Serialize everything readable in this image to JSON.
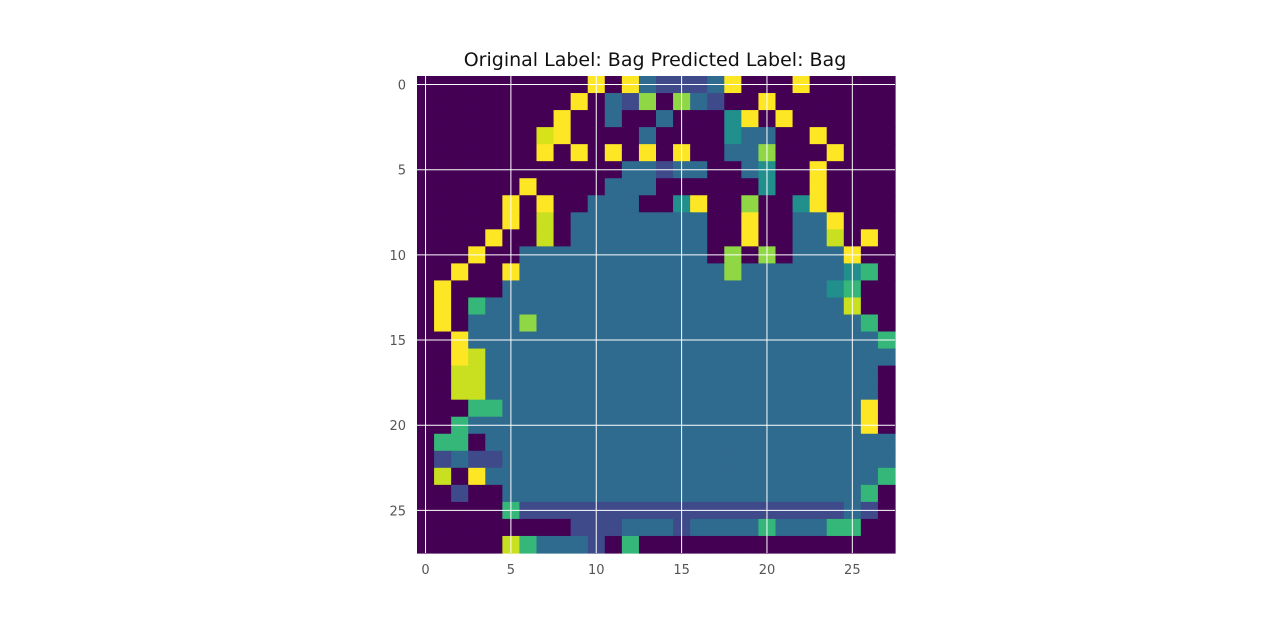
{
  "chart_data": {
    "type": "heatmap",
    "title": "Original Label: Bag  Predicted Label: Bag",
    "xlabel": "",
    "ylabel": "",
    "xlim": [
      -0.5,
      27.5
    ],
    "ylim": [
      27.5,
      -0.5
    ],
    "x_ticks": [
      0,
      5,
      10,
      15,
      20,
      25
    ],
    "y_ticks": [
      0,
      5,
      10,
      15,
      20,
      25
    ],
    "x_tick_labels": [
      "0",
      "5",
      "10",
      "15",
      "20",
      "25"
    ],
    "y_tick_labels": [
      "0",
      "5",
      "10",
      "15",
      "20",
      "25"
    ],
    "grid": true,
    "colormap": "viridis",
    "value_range": [
      0,
      1
    ],
    "colors": {
      "grid": "#ffffff",
      "tick_label": "#555555",
      "title": "#111111"
    },
    "matrix": [
      "0000000000Y0Y21112Y000Y00000",
      "000000000Y021L0L2100Y0000000",
      "00000000Y0020020003Y0Y000000",
      "00000007Y00002000032200Y0000",
      "0000000Y0Y0Y0Y0Y0022L000Y000",
      "00000000000022122002300Y0000",
      "000000Y0000222000000300Y0000",
      "00000Y0Y00222003Y00L003Y0000",
      "00000Y0J02222222200Y0022Y000",
      "0000Y00J02222222200Y0022J0Y0",
      "000Y00222222222220L0L0222Y00",
      "00Y00Y222222222222L2222223G0",
      "0Y00022222222222222222223G00",
      "0Y0G222222222222222222222J00",
      "0Y0222L2222222222222222222G0",
      "00Y222222222222222222222222G",
      "00YJ222222222222222222222222",
      "00JJ222222222222222222222220",
      "00JJ222222222222222222222220",
      "000GG222222222222222222222Y0",
      "00G22222222222222222222222Y0",
      "0GG0222222222222222222222222",
      "0121122222222222222222222222",
      "0J0Y22222222222222222222222G",
      "00100222222222222222222222G0",
      "00000G1111111111111111111210",
      "00000000011122212222G222GG00",
      "00000JG22210G000000000000000"
    ]
  }
}
